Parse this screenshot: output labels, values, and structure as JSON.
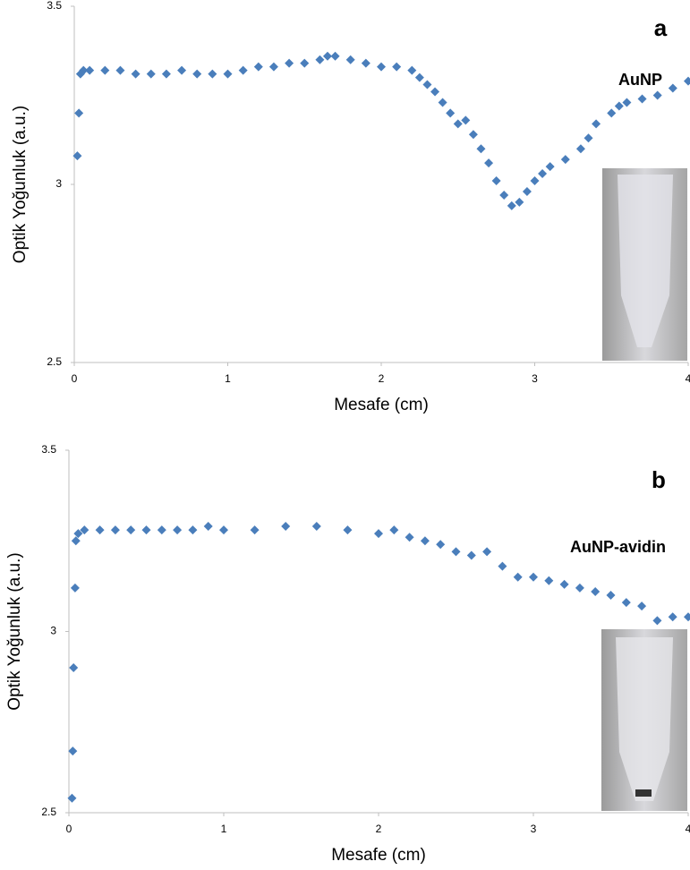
{
  "chart_data": [
    {
      "type": "scatter",
      "x_label": "Mesafe (cm)",
      "y_label": "Optik Yoğunluk (a.u.)",
      "annotations": [
        "a",
        "AuNP"
      ],
      "color": "#4a7ebb",
      "xlim": [
        0,
        4
      ],
      "xticks": [
        0,
        1,
        2,
        3,
        4
      ],
      "ylim": [
        2.5,
        3.5
      ],
      "yticks": [
        2.5,
        3,
        3.5
      ],
      "x": [
        0.02,
        0.03,
        0.04,
        0.06,
        0.1,
        0.2,
        0.3,
        0.4,
        0.5,
        0.6,
        0.7,
        0.8,
        0.9,
        1.0,
        1.1,
        1.2,
        1.3,
        1.4,
        1.5,
        1.6,
        1.65,
        1.7,
        1.8,
        1.9,
        2.0,
        2.1,
        2.2,
        2.25,
        2.3,
        2.35,
        2.4,
        2.45,
        2.5,
        2.55,
        2.6,
        2.65,
        2.7,
        2.75,
        2.8,
        2.85,
        2.9,
        2.95,
        3.0,
        3.05,
        3.1,
        3.2,
        3.3,
        3.35,
        3.4,
        3.5,
        3.55,
        3.6,
        3.7,
        3.8,
        3.9,
        4.0
      ],
      "values": [
        3.08,
        3.2,
        3.31,
        3.32,
        3.32,
        3.32,
        3.32,
        3.31,
        3.31,
        3.31,
        3.32,
        3.31,
        3.31,
        3.31,
        3.32,
        3.33,
        3.33,
        3.34,
        3.34,
        3.35,
        3.36,
        3.36,
        3.35,
        3.34,
        3.33,
        3.33,
        3.32,
        3.3,
        3.28,
        3.26,
        3.23,
        3.2,
        3.17,
        3.18,
        3.14,
        3.1,
        3.06,
        3.01,
        2.97,
        2.94,
        2.95,
        2.98,
        3.01,
        3.03,
        3.05,
        3.07,
        3.1,
        3.13,
        3.17,
        3.2,
        3.22,
        3.23,
        3.24,
        3.25,
        3.27,
        3.29
      ]
    },
    {
      "type": "scatter",
      "x_label": "Mesafe (cm)",
      "y_label": "Optik Yoğunluk (a.u.)",
      "annotations": [
        "b",
        "AuNP-avidin"
      ],
      "color": "#4a7ebb",
      "xlim": [
        0,
        4
      ],
      "xticks": [
        0,
        1,
        2,
        3,
        4
      ],
      "ylim": [
        2.5,
        3.5
      ],
      "yticks": [
        2.5,
        3,
        3.5
      ],
      "x": [
        0.02,
        0.025,
        0.03,
        0.04,
        0.045,
        0.06,
        0.1,
        0.2,
        0.3,
        0.4,
        0.5,
        0.6,
        0.7,
        0.8,
        0.9,
        1.0,
        1.2,
        1.4,
        1.6,
        1.8,
        2.0,
        2.1,
        2.2,
        2.3,
        2.4,
        2.5,
        2.6,
        2.7,
        2.8,
        2.9,
        3.0,
        3.1,
        3.2,
        3.3,
        3.4,
        3.5,
        3.6,
        3.7,
        3.8,
        3.9,
        4.0
      ],
      "values": [
        2.54,
        2.67,
        2.9,
        3.12,
        3.25,
        3.27,
        3.28,
        3.28,
        3.28,
        3.28,
        3.28,
        3.28,
        3.28,
        3.28,
        3.29,
        3.28,
        3.28,
        3.29,
        3.29,
        3.28,
        3.27,
        3.28,
        3.26,
        3.25,
        3.24,
        3.22,
        3.21,
        3.22,
        3.18,
        3.15,
        3.15,
        3.14,
        3.13,
        3.12,
        3.11,
        3.1,
        3.08,
        3.07,
        3.03,
        3.04,
        3.04
      ]
    }
  ]
}
